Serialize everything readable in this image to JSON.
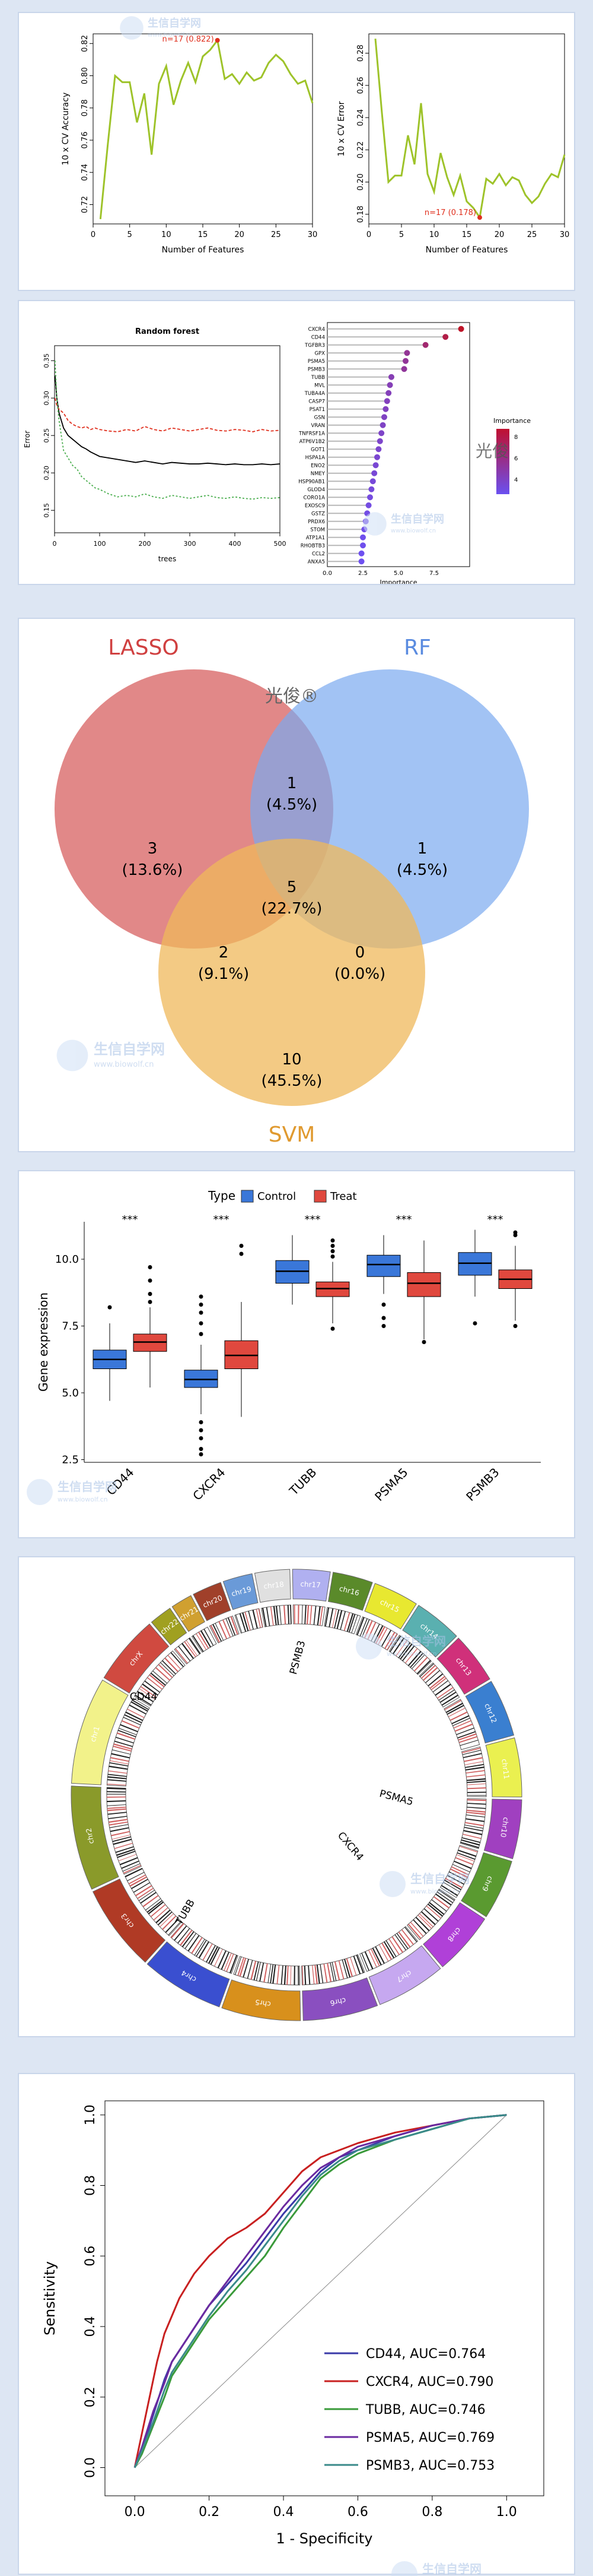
{
  "colors": {
    "accent_line": "#9ec32a",
    "marker": "#e0301e",
    "lasso": "#d96a6a",
    "rf": "#7aa9f0",
    "svm": "#efb85b",
    "control": "#3a77d9",
    "treat": "#e0483e",
    "page_bg": "#dde6f3"
  },
  "watermarks": {
    "cn_brand": "光俊",
    "cn_brand_reg": "光俊®",
    "site_cn": "生信自学网",
    "site_url": "www.biowolf.cn"
  },
  "chart_data": [
    {
      "type": "line",
      "title": "",
      "xlabel": "Number of Features",
      "ylabel": "10 x CV Accuracy",
      "xlim": [
        0,
        30
      ],
      "ylim": [
        0.708,
        0.826
      ],
      "xticks": [
        0,
        5,
        10,
        15,
        20,
        25,
        30
      ],
      "yticks": [
        0.72,
        0.74,
        0.76,
        0.78,
        0.8,
        0.82
      ],
      "x": [
        1,
        2,
        3,
        4,
        5,
        6,
        7,
        8,
        9,
        10,
        11,
        12,
        13,
        14,
        15,
        16,
        17,
        18,
        19,
        20,
        21,
        22,
        23,
        24,
        25,
        26,
        27,
        28,
        29,
        30
      ],
      "y": [
        0.711,
        0.757,
        0.8,
        0.796,
        0.796,
        0.771,
        0.789,
        0.751,
        0.795,
        0.806,
        0.782,
        0.797,
        0.808,
        0.796,
        0.812,
        0.816,
        0.822,
        0.798,
        0.801,
        0.795,
        0.802,
        0.797,
        0.799,
        0.808,
        0.813,
        0.809,
        0.801,
        0.795,
        0.797,
        0.783
      ],
      "annotation": "n=17 (0.822)"
    },
    {
      "type": "line",
      "title": "",
      "xlabel": "Number of Features",
      "ylabel": "10 x CV Error",
      "xlim": [
        0,
        30
      ],
      "ylim": [
        0.174,
        0.292
      ],
      "xticks": [
        0,
        5,
        10,
        15,
        20,
        25,
        30
      ],
      "yticks": [
        0.18,
        0.2,
        0.22,
        0.24,
        0.26,
        0.28
      ],
      "x": [
        1,
        2,
        3,
        4,
        5,
        6,
        7,
        8,
        9,
        10,
        11,
        12,
        13,
        14,
        15,
        16,
        17,
        18,
        19,
        20,
        21,
        22,
        23,
        24,
        25,
        26,
        27,
        28,
        29,
        30
      ],
      "y": [
        0.289,
        0.243,
        0.2,
        0.204,
        0.204,
        0.229,
        0.211,
        0.249,
        0.205,
        0.194,
        0.218,
        0.203,
        0.192,
        0.204,
        0.188,
        0.184,
        0.178,
        0.202,
        0.199,
        0.205,
        0.198,
        0.203,
        0.201,
        0.192,
        0.187,
        0.191,
        0.199,
        0.205,
        0.203,
        0.217
      ],
      "annotation": "n=17 (0.178)"
    },
    {
      "type": "line",
      "title": "Random forest",
      "xlabel": "trees",
      "ylabel": "Error",
      "xlim": [
        0,
        500
      ],
      "ylim": [
        0.12,
        0.37
      ],
      "xticks": [
        0,
        100,
        200,
        300,
        400,
        500
      ],
      "yticks": [
        0.15,
        0.2,
        0.25,
        0.3,
        0.35
      ],
      "x": [
        1,
        5,
        10,
        20,
        30,
        40,
        50,
        60,
        70,
        80,
        90,
        100,
        120,
        140,
        160,
        180,
        200,
        220,
        240,
        260,
        280,
        300,
        320,
        340,
        360,
        380,
        400,
        420,
        440,
        460,
        480,
        500
      ],
      "series": [
        {
          "color": "#000000",
          "dash": "",
          "values": [
            0.33,
            0.3,
            0.28,
            0.26,
            0.25,
            0.245,
            0.24,
            0.235,
            0.232,
            0.228,
            0.225,
            0.222,
            0.22,
            0.218,
            0.216,
            0.214,
            0.216,
            0.214,
            0.212,
            0.214,
            0.213,
            0.212,
            0.212,
            0.213,
            0.212,
            0.211,
            0.212,
            0.211,
            0.211,
            0.212,
            0.211,
            0.212
          ]
        },
        {
          "color": "#e0301e",
          "dash": "5,3",
          "values": [
            0.3,
            0.29,
            0.285,
            0.28,
            0.27,
            0.265,
            0.262,
            0.26,
            0.262,
            0.258,
            0.26,
            0.258,
            0.256,
            0.255,
            0.258,
            0.256,
            0.262,
            0.258,
            0.256,
            0.26,
            0.258,
            0.256,
            0.258,
            0.26,
            0.257,
            0.256,
            0.258,
            0.257,
            0.255,
            0.258,
            0.256,
            0.257
          ]
        },
        {
          "color": "#4caf50",
          "dash": "3,3",
          "values": [
            0.35,
            0.3,
            0.27,
            0.23,
            0.22,
            0.21,
            0.205,
            0.195,
            0.19,
            0.185,
            0.18,
            0.178,
            0.172,
            0.168,
            0.17,
            0.168,
            0.172,
            0.168,
            0.166,
            0.17,
            0.168,
            0.166,
            0.168,
            0.17,
            0.167,
            0.166,
            0.168,
            0.166,
            0.165,
            0.167,
            0.166,
            0.167
          ]
        }
      ]
    },
    {
      "type": "scatter",
      "title": "",
      "xlabel": "Importance",
      "ylabel": "",
      "xlim": [
        0,
        10
      ],
      "xticks": [
        0.0,
        2.5,
        5.0,
        7.5
      ],
      "legend_title": "Importance",
      "legend_ticks": [
        "8",
        "6",
        "4"
      ],
      "legend_placement": "right",
      "categories": [
        "CXCR4",
        "CD44",
        "TGFBR3",
        "GPX",
        "PSMA5",
        "PSMB3",
        "TUBB",
        "MVL",
        "TUBA4A",
        "CASP7",
        "PSAT1",
        "GSN",
        "VRAN",
        "TNFRSF1A",
        "ATP6V1B2",
        "GOT1",
        "HSPA1A",
        "ENO2",
        "NMEY",
        "HSP90AB1",
        "GLOD4",
        "CORO1A",
        "EXOSC9",
        "GSTZ",
        "PRDX6",
        "STOM",
        "ATP1A1",
        "RHOBTB3",
        "CCL2",
        "ANXA5"
      ],
      "values": [
        9.4,
        8.3,
        6.9,
        5.6,
        5.5,
        5.4,
        4.5,
        4.4,
        4.3,
        4.2,
        4.1,
        4.0,
        3.9,
        3.8,
        3.7,
        3.6,
        3.5,
        3.4,
        3.3,
        3.2,
        3.1,
        3.0,
        2.9,
        2.8,
        2.7,
        2.6,
        2.5,
        2.5,
        2.4,
        2.4
      ]
    },
    {
      "type": "venn",
      "sets": [
        "LASSO",
        "RF",
        "SVM"
      ],
      "regions": [
        {
          "region": "LASSO only",
          "count": "3",
          "pct": "(13.6%)"
        },
        {
          "region": "LASSO∩RF",
          "count": "1",
          "pct": "(4.5%)"
        },
        {
          "region": "RF only",
          "count": "1",
          "pct": "(4.5%)"
        },
        {
          "region": "LASSO∩RF∩SVM",
          "count": "5",
          "pct": "(22.7%)"
        },
        {
          "region": "LASSO∩SVM",
          "count": "2",
          "pct": "(9.1%)"
        },
        {
          "region": "RF∩SVM",
          "count": "0",
          "pct": "(0.0%)"
        },
        {
          "region": "SVM only",
          "count": "10",
          "pct": "(45.5%)"
        }
      ]
    },
    {
      "type": "boxplot",
      "title": "",
      "legend_title": "Type",
      "legend_placement": "top",
      "series_names": [
        "Control",
        "Treat"
      ],
      "ylabel": "Gene expression",
      "ylim": [
        2.4,
        11.4
      ],
      "yticks": [
        2.5,
        5.0,
        7.5,
        10.0
      ],
      "categories": [
        "CD44",
        "CXCR4",
        "TUBB",
        "PSMA5",
        "PSMB3"
      ],
      "significance": [
        "***",
        "***",
        "***",
        "***",
        "***"
      ],
      "boxes": [
        {
          "gene": "CD44",
          "control": [
            4.7,
            5.9,
            6.25,
            6.6,
            7.6
          ],
          "treat": [
            5.2,
            6.55,
            6.9,
            7.2,
            8.2
          ],
          "control_out": [
            8.2
          ],
          "treat_out": [
            8.4,
            8.7,
            9.2,
            9.7
          ]
        },
        {
          "gene": "CXCR4",
          "control": [
            4.2,
            5.2,
            5.5,
            5.85,
            6.8
          ],
          "treat": [
            4.1,
            5.9,
            6.4,
            6.95,
            8.4
          ],
          "control_out": [
            2.7,
            2.9,
            3.3,
            3.6,
            3.9,
            7.2,
            7.6,
            8.0,
            8.3,
            8.6
          ],
          "treat_out": [
            10.2,
            10.5
          ]
        },
        {
          "gene": "TUBB",
          "control": [
            8.3,
            9.1,
            9.55,
            9.95,
            10.9
          ],
          "treat": [
            7.6,
            8.6,
            8.9,
            9.15,
            9.9
          ],
          "control_out": [],
          "treat_out": [
            7.4,
            10.1,
            10.3,
            10.5,
            10.7
          ]
        },
        {
          "gene": "PSMA5",
          "control": [
            8.7,
            9.35,
            9.8,
            10.15,
            10.9
          ],
          "treat": [
            7.0,
            8.6,
            9.1,
            9.5,
            10.7
          ],
          "control_out": [
            7.5,
            7.8,
            8.3
          ],
          "treat_out": [
            6.9
          ]
        },
        {
          "gene": "PSMB3",
          "control": [
            8.6,
            9.4,
            9.85,
            10.25,
            11.1
          ],
          "treat": [
            7.7,
            8.9,
            9.25,
            9.6,
            10.5
          ],
          "control_out": [
            7.6
          ],
          "treat_out": [
            7.5,
            10.9,
            11.0
          ]
        }
      ]
    },
    {
      "type": "circos",
      "chromosomes": [
        "chr1",
        "chr2",
        "chr3",
        "chr4",
        "chr5",
        "chr6",
        "chr7",
        "chr8",
        "chr9",
        "chr10",
        "chr11",
        "chr12",
        "chr13",
        "chr14",
        "chr15",
        "chr16",
        "chr17",
        "chr18",
        "chr19",
        "chr20",
        "chr21",
        "chr22",
        "chrX",
        "chrY"
      ],
      "chrom_colors": [
        "#f2f28a",
        "#8a9a2a",
        "#b03a25",
        "#3a4fd0",
        "#d8901c",
        "#8a4fc0",
        "#c6a8f0",
        "#b040d8",
        "#5a9a30",
        "#a040c0",
        "#eaf050",
        "#3a7fd0",
        "#d0307a",
        "#5ab0b0",
        "#e8e830",
        "#5a8a2a",
        "#b0b0f0",
        "#e0e0e0",
        "#6a9ad8",
        "#a0402a",
        "#d0a030",
        "#a0a020",
        "#d04a40",
        "#e0e0e0"
      ],
      "genes": [
        "CD44",
        "PSMB3",
        "PSMA5",
        "CXCR4",
        "TUBB"
      ]
    },
    {
      "type": "line",
      "title": "",
      "xlabel": "1 - Specificity",
      "ylabel": "Sensitivity",
      "xlim": [
        -0.08,
        1.1
      ],
      "ylim": [
        -0.08,
        1.04
      ],
      "xticks": [
        0.0,
        0.2,
        0.4,
        0.6,
        0.8,
        1.0
      ],
      "yticks": [
        0.0,
        0.2,
        0.4,
        0.6,
        0.8,
        1.0
      ],
      "legend_placement": "bottom-right",
      "series": [
        {
          "name": "CD44, AUC=0.764",
          "color": "#3a3aa8",
          "x": [
            0,
            0.02,
            0.05,
            0.08,
            0.1,
            0.15,
            0.2,
            0.25,
            0.3,
            0.35,
            0.4,
            0.45,
            0.5,
            0.55,
            0.6,
            0.7,
            0.8,
            0.9,
            1.0
          ],
          "y": [
            0,
            0.05,
            0.15,
            0.25,
            0.3,
            0.38,
            0.46,
            0.52,
            0.58,
            0.65,
            0.72,
            0.78,
            0.84,
            0.88,
            0.9,
            0.94,
            0.97,
            0.99,
            1.0
          ]
        },
        {
          "name": "CXCR4, AUC=0.790",
          "color": "#c82020",
          "x": [
            0,
            0.02,
            0.04,
            0.06,
            0.08,
            0.12,
            0.16,
            0.2,
            0.25,
            0.3,
            0.35,
            0.4,
            0.45,
            0.5,
            0.6,
            0.7,
            0.8,
            0.9,
            1.0
          ],
          "y": [
            0,
            0.1,
            0.2,
            0.3,
            0.38,
            0.48,
            0.55,
            0.6,
            0.65,
            0.68,
            0.72,
            0.78,
            0.84,
            0.88,
            0.92,
            0.95,
            0.97,
            0.99,
            1.0
          ]
        },
        {
          "name": "TUBB, AUC=0.746",
          "color": "#3a9a3a",
          "x": [
            0,
            0.02,
            0.05,
            0.08,
            0.1,
            0.15,
            0.2,
            0.25,
            0.3,
            0.35,
            0.4,
            0.45,
            0.5,
            0.55,
            0.6,
            0.7,
            0.8,
            0.9,
            1.0
          ],
          "y": [
            0,
            0.04,
            0.12,
            0.2,
            0.26,
            0.34,
            0.42,
            0.48,
            0.54,
            0.6,
            0.68,
            0.75,
            0.82,
            0.86,
            0.89,
            0.93,
            0.96,
            0.99,
            1.0
          ]
        },
        {
          "name": "PSMA5, AUC=0.769",
          "color": "#6a2aa0",
          "x": [
            0,
            0.02,
            0.05,
            0.08,
            0.1,
            0.15,
            0.2,
            0.25,
            0.3,
            0.35,
            0.4,
            0.45,
            0.5,
            0.55,
            0.6,
            0.7,
            0.8,
            0.9,
            1.0
          ],
          "y": [
            0,
            0.06,
            0.16,
            0.24,
            0.3,
            0.38,
            0.46,
            0.53,
            0.6,
            0.67,
            0.74,
            0.8,
            0.85,
            0.88,
            0.91,
            0.94,
            0.97,
            0.99,
            1.0
          ]
        },
        {
          "name": "PSMB3, AUC=0.753",
          "color": "#3a8a8a",
          "x": [
            0,
            0.02,
            0.05,
            0.08,
            0.1,
            0.15,
            0.2,
            0.25,
            0.3,
            0.35,
            0.4,
            0.45,
            0.5,
            0.55,
            0.6,
            0.7,
            0.8,
            0.9,
            1.0
          ],
          "y": [
            0,
            0.05,
            0.13,
            0.22,
            0.27,
            0.35,
            0.43,
            0.5,
            0.56,
            0.63,
            0.7,
            0.77,
            0.83,
            0.87,
            0.9,
            0.93,
            0.96,
            0.99,
            1.0
          ]
        }
      ]
    }
  ]
}
